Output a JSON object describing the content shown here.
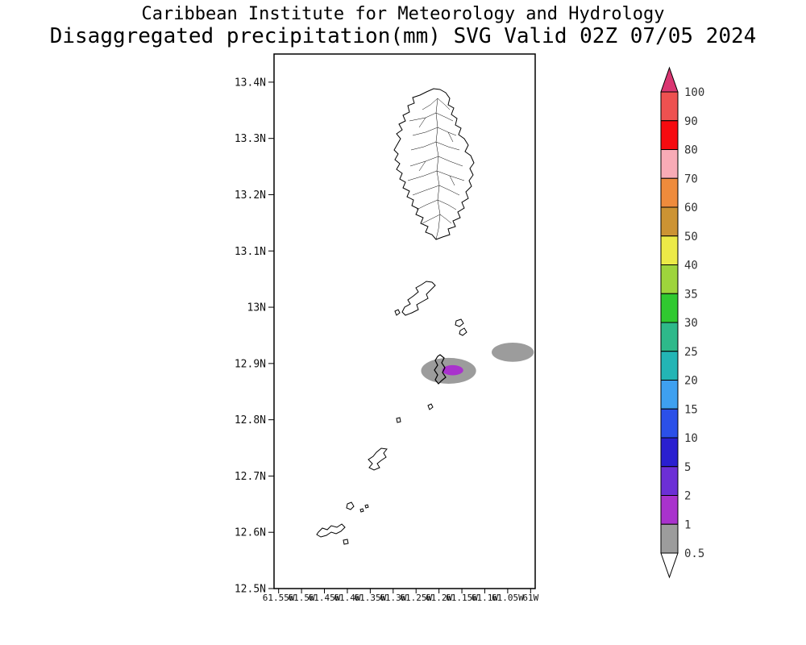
{
  "title": {
    "line1": "Caribbean Institute for Meteorology and Hydrology",
    "line2": "Disaggregated precipitation(mm) SVG Valid 02Z 07/05 2024"
  },
  "map": {
    "lat_labels": [
      "13.4N",
      "13.3N",
      "13.2N",
      "13.1N",
      "13N",
      "12.9N",
      "12.8N",
      "12.7N",
      "12.6N",
      "12.5N"
    ],
    "lon_labels": [
      "61.55W",
      "61.5W",
      "61.45W",
      "61.4W",
      "61.35W",
      "61.3W",
      "61.25W",
      "61.2W",
      "61.15W",
      "61.1W",
      "61.05W",
      "61W"
    ]
  },
  "colorbar": {
    "labels": [
      "100",
      "90",
      "80",
      "70",
      "60",
      "50",
      "40",
      "35",
      "30",
      "25",
      "20",
      "15",
      "10",
      "5",
      "2",
      "1",
      "0.5"
    ],
    "segment_colors_top_to_bottom": [
      "#ee5150",
      "#f60b10",
      "#f8abb6",
      "#ef8b3c",
      "#cc9333",
      "#ecea47",
      "#9ed43c",
      "#30c930",
      "#2eb98a",
      "#23b5b5",
      "#3ea0f0",
      "#2b50e8",
      "#2a1fd0",
      "#6c2fd6",
      "#a932cd",
      "#9c9c9c"
    ],
    "arrow_top_color": "#da3671",
    "arrow_bottom_color": "#ffffff"
  },
  "chart_data": {
    "type": "map",
    "title": "Disaggregated precipitation(mm) SVG Valid 02Z 07/05 2024",
    "organization": "Caribbean Institute for Meteorology and Hydrology",
    "valid_time": "02Z 07/05 2024",
    "unit": "mm",
    "region": "St. Vincent and the Grenadines",
    "lat_ticks": [
      13.4,
      13.3,
      13.2,
      13.1,
      13.0,
      12.9,
      12.8,
      12.7,
      12.6,
      12.5
    ],
    "lon_ticks_w": [
      61.55,
      61.5,
      61.45,
      61.4,
      61.35,
      61.3,
      61.25,
      61.2,
      61.15,
      61.1,
      61.05,
      61.0
    ],
    "scale_levels_mm": [
      0.5,
      1,
      2,
      5,
      10,
      15,
      20,
      25,
      30,
      35,
      40,
      50,
      60,
      70,
      80,
      90,
      100
    ],
    "level_colors": {
      "gray": "#9c9c9c",
      "purple": "#a932cd"
    },
    "features": [
      {
        "level_mm": "0.5-1",
        "color_key": "gray",
        "lon_w": 61.179,
        "lat_n": 12.887,
        "rx_deg": 0.06,
        "ry_deg": 0.023,
        "note": "shaded area around Mustique"
      },
      {
        "level_mm": "0.5-1",
        "color_key": "gray",
        "lon_w": 61.039,
        "lat_n": 12.92,
        "rx_deg": 0.046,
        "ry_deg": 0.017,
        "note": "shaded area east-northeast of Mustique"
      },
      {
        "level_mm": "1-2",
        "color_key": "purple",
        "lon_w": 61.17,
        "lat_n": 12.888,
        "rx_deg": 0.023,
        "ry_deg": 0.009,
        "note": "core just east of Mustique"
      }
    ]
  }
}
